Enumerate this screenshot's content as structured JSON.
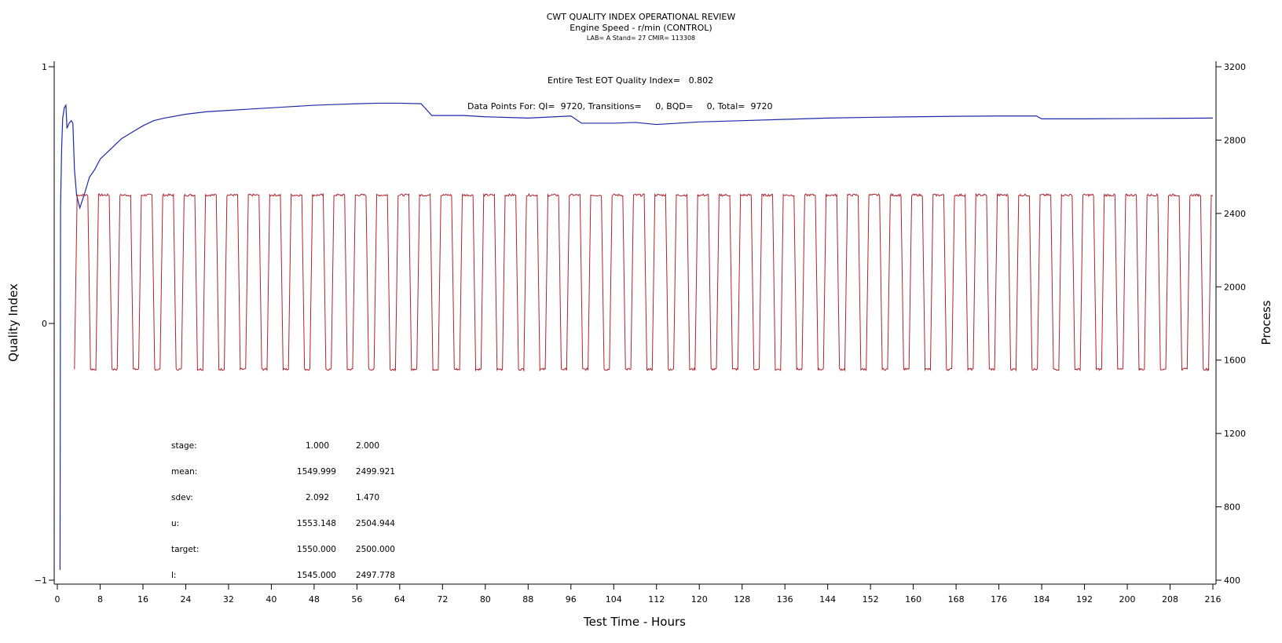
{
  "chart_data": {
    "type": "line",
    "title": "CWT QUALITY INDEX OPERATIONAL REVIEW",
    "subtitle": "Engine Speed - r/min (CONTROL)",
    "subtitle2": "LAB= A Stand= 27 CMIR= 113308",
    "annotations": {
      "quality_index": "Entire Test EOT Quality Index=   0.802",
      "data_points": "Data Points For: QI=  9720, Transitions=     0, BQD=     0, Total=  9720"
    },
    "xlabel": "Test Time - Hours",
    "ylabel_left": "Quality Index",
    "ylabel_right": "Process",
    "xlim": [
      0,
      216
    ],
    "ylim_left": [
      -1,
      1
    ],
    "ylim_right": [
      400,
      3200
    ],
    "x_ticks": [
      0,
      8,
      16,
      24,
      32,
      40,
      48,
      56,
      64,
      72,
      80,
      88,
      96,
      104,
      112,
      120,
      128,
      136,
      144,
      152,
      160,
      168,
      176,
      184,
      192,
      200,
      208,
      216
    ],
    "y_ticks_left": [
      -1,
      0,
      1
    ],
    "y_ticks_right": [
      400,
      800,
      1200,
      1600,
      2000,
      2400,
      2800,
      3200
    ],
    "grid": false,
    "series": [
      {
        "axis": "left",
        "color": "#1c2aa8",
        "points": [
          [
            0.5,
            -0.96
          ],
          [
            0.6,
            0.45
          ],
          [
            0.8,
            0.68
          ],
          [
            1.0,
            0.8
          ],
          [
            1.3,
            0.84
          ],
          [
            1.6,
            0.85
          ],
          [
            1.8,
            0.76
          ],
          [
            2.2,
            0.78
          ],
          [
            2.6,
            0.79
          ],
          [
            2.9,
            0.78
          ],
          [
            3.2,
            0.6
          ],
          [
            3.6,
            0.5
          ],
          [
            4.2,
            0.45
          ],
          [
            5.0,
            0.5
          ],
          [
            6.0,
            0.57
          ],
          [
            7.0,
            0.6
          ],
          [
            8.0,
            0.64
          ],
          [
            10,
            0.68
          ],
          [
            12,
            0.72
          ],
          [
            14,
            0.745
          ],
          [
            16,
            0.77
          ],
          [
            18,
            0.79
          ],
          [
            20,
            0.8
          ],
          [
            24,
            0.815
          ],
          [
            28,
            0.825
          ],
          [
            32,
            0.83
          ],
          [
            36,
            0.835
          ],
          [
            40,
            0.84
          ],
          [
            44,
            0.845
          ],
          [
            48,
            0.85
          ],
          [
            52,
            0.853
          ],
          [
            56,
            0.856
          ],
          [
            60,
            0.858
          ],
          [
            64,
            0.858
          ],
          [
            68,
            0.856
          ],
          [
            70,
            0.81
          ],
          [
            76,
            0.81
          ],
          [
            80,
            0.805
          ],
          [
            88,
            0.8
          ],
          [
            96,
            0.808
          ],
          [
            98,
            0.78
          ],
          [
            104,
            0.78
          ],
          [
            108,
            0.783
          ],
          [
            112,
            0.775
          ],
          [
            120,
            0.785
          ],
          [
            128,
            0.79
          ],
          [
            136,
            0.795
          ],
          [
            144,
            0.8
          ],
          [
            152,
            0.803
          ],
          [
            160,
            0.805
          ],
          [
            168,
            0.807
          ],
          [
            176,
            0.808
          ],
          [
            183,
            0.808
          ],
          [
            184,
            0.797
          ],
          [
            192,
            0.797
          ],
          [
            200,
            0.798
          ],
          [
            208,
            0.799
          ],
          [
            216,
            0.8
          ]
        ]
      },
      {
        "axis": "right",
        "color": "#b0232a",
        "cycle": {
          "start": 3.2,
          "period": 4.0,
          "high": 2500,
          "low": 1550,
          "high_duration": 2.0,
          "ramp": 0.5,
          "end": 216
        },
        "noise_amplitude": 6
      }
    ],
    "stats": {
      "labels": [
        "stage:",
        "mean:",
        "sdev:",
        "u:",
        "target:",
        "l:"
      ],
      "stage1": [
        "1.000",
        "1549.999",
        "2.092",
        "1553.148",
        "1550.000",
        "1545.000"
      ],
      "stage2": [
        "2.000",
        "2499.921",
        "1.470",
        "2504.944",
        "2500.000",
        "2497.778"
      ]
    }
  }
}
